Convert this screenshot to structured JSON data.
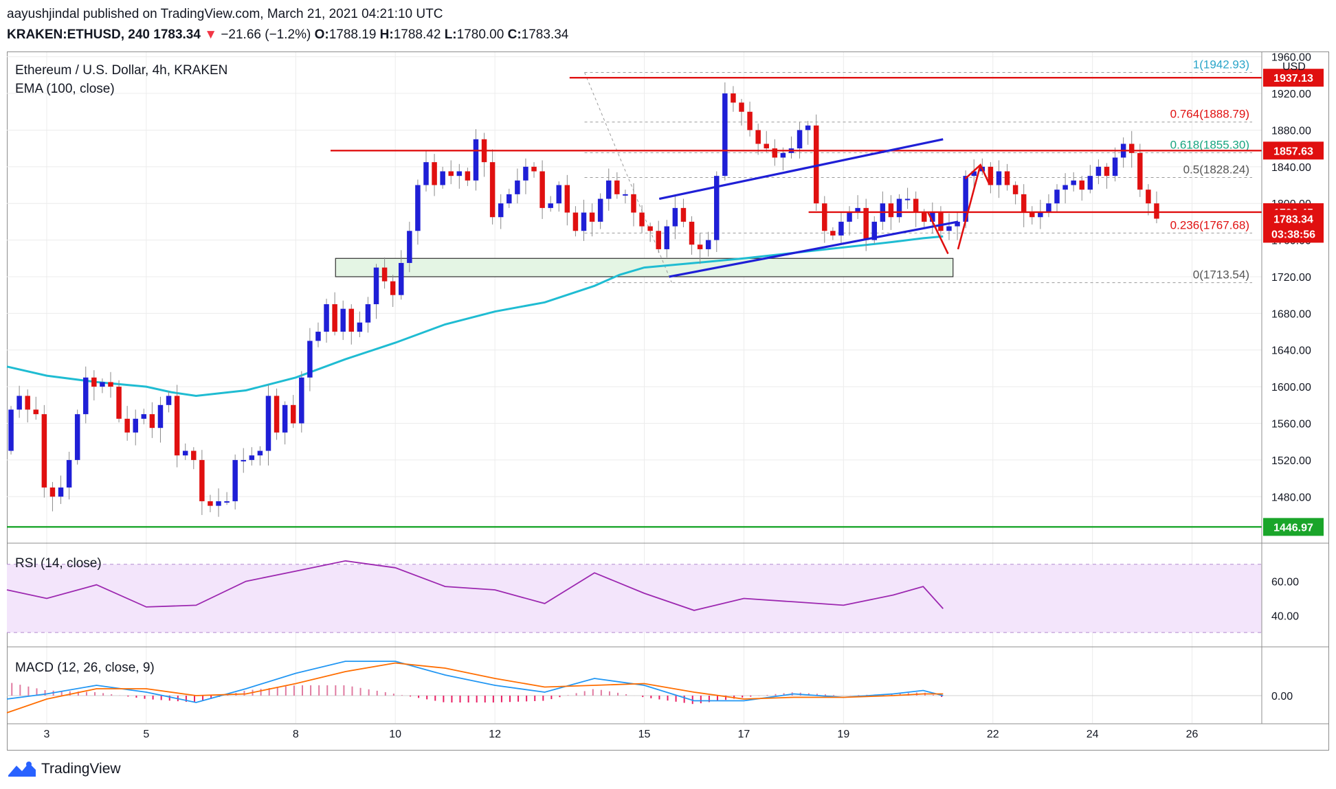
{
  "header": {
    "line1": "aayushjindal published on TradingView.com, March 21, 2021 04:21:10 UTC",
    "symbol": "KRAKEN:ETHUSD, 240",
    "last": "1783.34",
    "arrow": "▼",
    "change": "−21.66 (−1.2%)",
    "o_label": "O:",
    "o_value": "1788.19",
    "h_label": "H:",
    "h_value": "1788.42",
    "l_label": "L:",
    "l_value": "1780.00",
    "c_label": "C:",
    "c_value": "1783.34"
  },
  "footer": {
    "brand": "TradingView"
  },
  "colors": {
    "up": "#1f1fd6",
    "down": "#e01010",
    "ema": "#1fbcd2",
    "resistance": "#e01010",
    "support": "#1aa52a",
    "channel": "#1f1fd6",
    "rsi": "#9c27b0",
    "macd": "#2196f3",
    "signal": "#ff6d00",
    "hist": "#e91e63",
    "zone_fill": "#e4f5e4",
    "zone_stroke": "#2f2f2f"
  },
  "chart_data": [
    {
      "type": "candlestick",
      "title": "Ethereum / U.S. Dollar, 4h, KRAKEN",
      "indicator_label": "EMA (100, close)",
      "currency": "USD",
      "ylim": [
        1430,
        1965
      ],
      "y_ticks": [
        1480,
        1520,
        1560,
        1600,
        1640,
        1680,
        1720,
        1760,
        1800,
        1840,
        1880,
        1920,
        1960
      ],
      "y_tick_labels": [
        "1480.00",
        "1520.00",
        "1560.00",
        "1600.00",
        "1640.00",
        "1680.00",
        "1720.00",
        "1760.00",
        "1800.00",
        "1840.00",
        "1880.00",
        "1920.00",
        "1960.00"
      ],
      "x_range": [
        2.2,
        27.4
      ],
      "x_ticks": [
        3,
        5,
        8,
        10,
        12,
        15,
        17,
        19,
        22,
        24,
        26
      ],
      "x_tick_labels": [
        "3",
        "5",
        "8",
        "10",
        "12",
        "15",
        "17",
        "19",
        "22",
        "24",
        "26"
      ],
      "candles_start_day": 2.2,
      "candle_step_day": 0.1667,
      "closes": [
        1575,
        1590,
        1575,
        1570,
        1490,
        1480,
        1490,
        1520,
        1570,
        1610,
        1600,
        1605,
        1600,
        1565,
        1550,
        1565,
        1570,
        1555,
        1580,
        1590,
        1525,
        1530,
        1520,
        1475,
        1470,
        1475,
        1475,
        1520,
        1520,
        1525,
        1530,
        1590,
        1550,
        1580,
        1560,
        1610,
        1650,
        1660,
        1690,
        1660,
        1685,
        1660,
        1670,
        1690,
        1730,
        1715,
        1700,
        1735,
        1770,
        1820,
        1845,
        1820,
        1835,
        1830,
        1835,
        1825,
        1870,
        1845,
        1785,
        1800,
        1810,
        1825,
        1840,
        1835,
        1795,
        1800,
        1820,
        1790,
        1770,
        1790,
        1780,
        1805,
        1825,
        1810,
        1810,
        1790,
        1775,
        1770,
        1750,
        1775,
        1795,
        1780,
        1755,
        1750,
        1760,
        1830,
        1920,
        1910,
        1900,
        1880,
        1865,
        1860,
        1850,
        1855,
        1860,
        1880,
        1885,
        1800,
        1770,
        1765,
        1780,
        1790,
        1795,
        1760,
        1780,
        1800,
        1785,
        1805,
        1805,
        1790,
        1780,
        1790,
        1770,
        1775,
        1780,
        1830,
        1835,
        1840,
        1820,
        1835,
        1820,
        1810,
        1790,
        1785,
        1790,
        1800,
        1815,
        1820,
        1825,
        1815,
        1830,
        1840,
        1830,
        1850,
        1865,
        1855,
        1815,
        1800,
        1783.34
      ],
      "ema100_line": [
        [
          2.2,
          1622
        ],
        [
          3.0,
          1612
        ],
        [
          4.0,
          1605
        ],
        [
          5.0,
          1600
        ],
        [
          5.5,
          1594
        ],
        [
          6.0,
          1590
        ],
        [
          7.0,
          1596
        ],
        [
          8.0,
          1610
        ],
        [
          9.0,
          1630
        ],
        [
          10.0,
          1648
        ],
        [
          11.0,
          1668
        ],
        [
          12.0,
          1682
        ],
        [
          13.0,
          1692
        ],
        [
          14.0,
          1710
        ],
        [
          14.5,
          1722
        ],
        [
          15.0,
          1730
        ],
        [
          16.0,
          1735
        ],
        [
          17.0,
          1740
        ],
        [
          18.0,
          1746
        ],
        [
          19.0,
          1752
        ],
        [
          20.0,
          1758
        ],
        [
          20.6,
          1762
        ],
        [
          21.0,
          1764
        ]
      ],
      "levels": [
        {
          "name": "resistance-top",
          "y": 1937.13,
          "tag": "1937.13",
          "x_start": 13.5
        },
        {
          "name": "resistance-mid",
          "y": 1857.63,
          "tag": "1857.63",
          "x_start": 8.7
        },
        {
          "name": "pivot",
          "y": 1790.45,
          "tag": "1790.45",
          "x_start": 18.3
        },
        {
          "name": "support-low",
          "y": 1446.97,
          "tag": "1446.97",
          "x_start": 2.2
        }
      ],
      "price_tag": {
        "value": "1783.34",
        "timer": "03:38:56",
        "y": 1783.34
      },
      "fib": [
        {
          "label": "1(1942.93)",
          "y": 1942.93,
          "color": "#2aa5c9"
        },
        {
          "label": "0.764(1888.79)",
          "y": 1888.79,
          "color": "#e01010"
        },
        {
          "label": "0.618(1855.30)",
          "y": 1855.3,
          "color": "#1aa580"
        },
        {
          "label": "0.5(1828.24)",
          "y": 1828.24,
          "color": "#555555"
        },
        {
          "label": "0.236(1767.68)",
          "y": 1767.68,
          "color": "#e01010"
        },
        {
          "label": "0(1713.54)",
          "y": 1713.54,
          "color": "#555555"
        }
      ],
      "fib_x_start": 13.8,
      "support_zone": {
        "x": [
          8.8,
          21.2
        ],
        "y": [
          1740,
          1720
        ]
      },
      "channel_upper": [
        [
          15.3,
          1805
        ],
        [
          21.0,
          1870
        ]
      ],
      "channel_lower": [
        [
          15.5,
          1720
        ],
        [
          21.3,
          1780
        ]
      ],
      "arrows": [
        {
          "name": "arrow-down",
          "points": [
            [
              20.7,
              1790
            ],
            [
              21.1,
              1745
            ]
          ]
        },
        {
          "name": "arrow-up",
          "points": [
            [
              21.3,
              1750
            ],
            [
              21.75,
              1842
            ]
          ]
        }
      ]
    },
    {
      "type": "line",
      "title": "RSI (14, close)",
      "ylim": [
        22,
        82
      ],
      "band": [
        30,
        70
      ],
      "y_ticks": [
        40,
        60
      ],
      "y_tick_labels": [
        "40.00",
        "60.00"
      ],
      "x": [
        2.2,
        3.0,
        4.0,
        5.0,
        6.0,
        7.0,
        8.0,
        9.0,
        10.0,
        11.0,
        12.0,
        13.0,
        14.0,
        15.0,
        16.0,
        17.0,
        18.0,
        19.0,
        20.0,
        20.6,
        21.0
      ],
      "values": [
        55,
        50,
        58,
        45,
        46,
        60,
        66,
        72,
        68,
        57,
        55,
        47,
        65,
        53,
        43,
        50,
        48,
        46,
        52,
        57,
        44
      ]
    },
    {
      "type": "line",
      "title": "MACD (12, 26, close, 9)",
      "ylim": [
        -16,
        28
      ],
      "y_ticks": [
        0
      ],
      "y_tick_labels": [
        "0.00"
      ],
      "x": [
        2.2,
        3.0,
        4.0,
        5.0,
        6.0,
        7.0,
        8.0,
        9.0,
        10.0,
        11.0,
        12.0,
        13.0,
        14.0,
        15.0,
        16.0,
        17.0,
        18.0,
        19.0,
        20.0,
        20.6,
        21.0
      ],
      "series": [
        {
          "name": "MACD",
          "values": [
            -2,
            1,
            6,
            2,
            -4,
            4,
            13,
            20,
            20,
            12,
            6,
            2,
            10,
            6,
            -3,
            -3,
            1,
            -1,
            1,
            3,
            0
          ]
        },
        {
          "name": "Signal",
          "values": [
            -10,
            -2,
            4,
            4,
            0,
            1,
            7,
            14,
            19,
            16,
            10,
            5,
            6,
            7,
            2,
            -2,
            -1,
            -1,
            0,
            1,
            1
          ]
        }
      ]
    }
  ]
}
